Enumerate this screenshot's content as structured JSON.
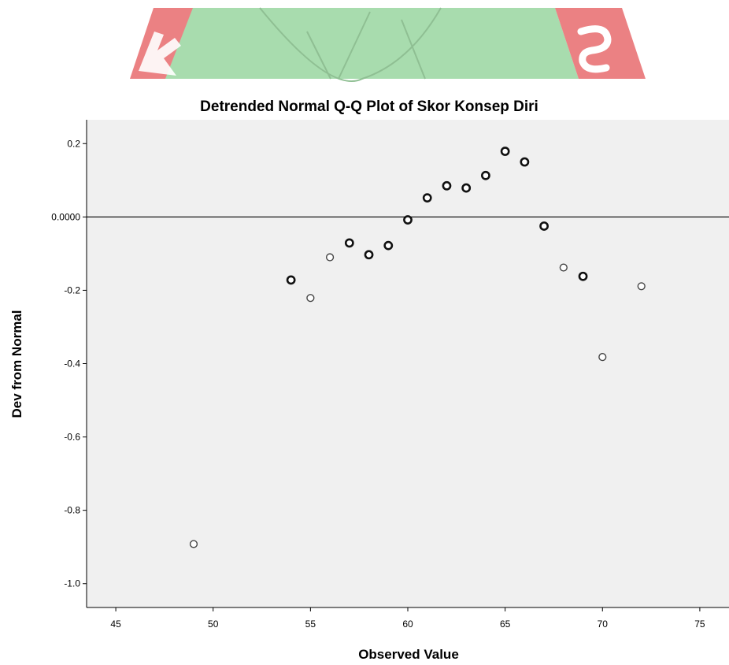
{
  "chart_data": {
    "type": "scatter",
    "title": "Detrended Normal Q-Q Plot of Skor Konsep Diri",
    "xlabel": "Observed Value",
    "ylabel": "Dev from Normal",
    "xlim": [
      43.5,
      76.5
    ],
    "ylim": [
      -1.065,
      0.265
    ],
    "x_ticks": [
      "45",
      "50",
      "55",
      "60",
      "65",
      "70",
      "75"
    ],
    "y_ticks": [
      "0.2",
      "0.0000",
      "-0.2",
      "-0.4",
      "-0.6",
      "-0.8",
      "-1.0"
    ],
    "reference_line_y": 0,
    "grid": false,
    "series": [
      {
        "points": [
          {
            "x": 49,
            "y": -0.892,
            "emphasis": "light"
          },
          {
            "x": 54,
            "y": -0.172,
            "emphasis": "bold"
          },
          {
            "x": 55,
            "y": -0.221,
            "emphasis": "light"
          },
          {
            "x": 56,
            "y": -0.11,
            "emphasis": "light"
          },
          {
            "x": 57,
            "y": -0.071,
            "emphasis": "bold"
          },
          {
            "x": 58,
            "y": -0.103,
            "emphasis": "bold"
          },
          {
            "x": 59,
            "y": -0.078,
            "emphasis": "bold"
          },
          {
            "x": 60,
            "y": -0.008,
            "emphasis": "bold"
          },
          {
            "x": 61,
            "y": 0.052,
            "emphasis": "bold"
          },
          {
            "x": 62,
            "y": 0.085,
            "emphasis": "bold"
          },
          {
            "x": 63,
            "y": 0.079,
            "emphasis": "bold"
          },
          {
            "x": 64,
            "y": 0.113,
            "emphasis": "bold"
          },
          {
            "x": 65,
            "y": 0.179,
            "emphasis": "bold"
          },
          {
            "x": 66,
            "y": 0.15,
            "emphasis": "bold"
          },
          {
            "x": 67,
            "y": -0.025,
            "emphasis": "bold"
          },
          {
            "x": 68,
            "y": -0.138,
            "emphasis": "light"
          },
          {
            "x": 69,
            "y": -0.162,
            "emphasis": "bold"
          },
          {
            "x": 70,
            "y": -0.382,
            "emphasis": "light"
          },
          {
            "x": 72,
            "y": -0.189,
            "emphasis": "light"
          }
        ]
      }
    ]
  },
  "colors": {
    "plot_background": "#f0f0f0",
    "marker_stroke": "#111111",
    "marker_light_stroke": "#444444",
    "marker_fill": "#ffffff",
    "watermark_green": "#a8dcae",
    "watermark_red": "#e9797b"
  }
}
